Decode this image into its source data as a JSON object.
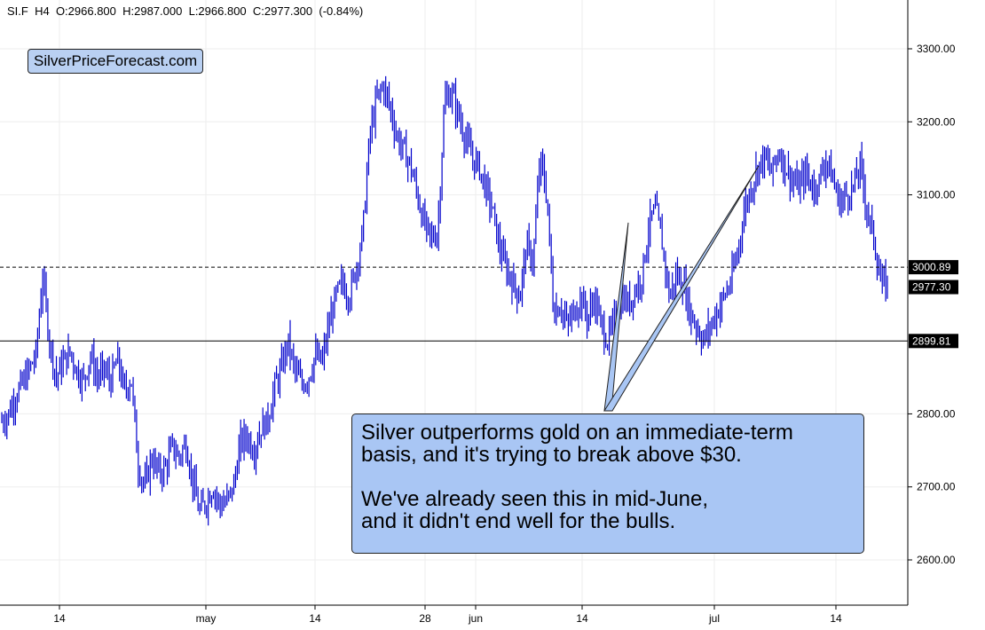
{
  "header": {
    "symbol": "SI.F",
    "timeframe": "H4",
    "open": "O:2966.800",
    "high": "H:2987.000",
    "low": "L:2966.800",
    "close": "C:2977.300",
    "change": "(-0.84%)"
  },
  "brand": {
    "label": "SilverPriceForecast.com"
  },
  "callout": {
    "line1": "Silver outperforms gold on an immediate-term",
    "line2": "basis, and it's trying to break above $30.",
    "line3": "We've already seen this in mid-June,",
    "line4": "and it didn't end well for the bulls."
  },
  "colors": {
    "price": "#0000cc",
    "callout_bg": "#a9c6f4",
    "brand_bg": "#b9d0f2"
  },
  "chart_data": {
    "type": "line",
    "series": [
      {
        "values": [
          2790,
          2800,
          2825,
          2840,
          2860,
          2880,
          2990,
          2900,
          2850,
          2870,
          2885,
          2860,
          2845,
          2880,
          2850,
          2860,
          2845,
          2875,
          2830,
          2850,
          2730,
          2700,
          2740,
          2720,
          2725,
          2755,
          2740,
          2760,
          2710,
          2665,
          2680,
          2700,
          2675,
          2680,
          2700,
          2760,
          2770,
          2750,
          2780,
          2790,
          2835,
          2860,
          2900,
          2860,
          2840,
          2850,
          2880,
          2870,
          2920,
          2960,
          2980,
          2960,
          3000,
          3050,
          3180,
          3230,
          3250,
          3220,
          3180,
          3160,
          3140,
          3100,
          3060,
          3040,
          3050,
          3230,
          3240,
          3210,
          3180,
          3150,
          3140,
          3110,
          3080,
          3030,
          3000,
          2980,
          2960,
          3030,
          3010,
          3150,
          3100,
          2940,
          2950,
          2920,
          2940,
          2960,
          2930,
          2960,
          2920,
          2900,
          2930,
          2960,
          2950,
          2970,
          2990,
          3060,
          3080,
          3030,
          2960,
          2990,
          2980,
          2940,
          2920,
          2900,
          2920,
          2940,
          2960,
          2980,
          3020,
          3080,
          3110,
          3140,
          3150,
          3130,
          3160,
          3140,
          3120,
          3110,
          3130,
          3110,
          3120,
          3150,
          3120,
          3090,
          3100,
          3110,
          3140,
          3080,
          3040,
          2980,
          2975
        ]
      }
    ],
    "levels": [
      {
        "value": 3000.89,
        "style": "dashed",
        "label": "3000.89"
      },
      {
        "value": 2899.81,
        "style": "solid",
        "label": "2899.81"
      }
    ],
    "last_price": {
      "value": 2977.3,
      "label": "2977.30"
    },
    "y_ticks": [
      {
        "value": 3300,
        "label": "3300.00"
      },
      {
        "value": 3200,
        "label": "3200.00"
      },
      {
        "value": 3100,
        "label": "3100.00"
      },
      {
        "value": 2800,
        "label": "2800.00"
      },
      {
        "value": 2700,
        "label": "2700.00"
      },
      {
        "value": 2600,
        "label": "2600.00"
      }
    ],
    "x_ticks": [
      "14",
      "may",
      "14",
      "28",
      "jun",
      "14",
      "jul",
      "14"
    ],
    "ylim": [
      2540,
      3380
    ],
    "grid": true,
    "title": "",
    "xlabel": "",
    "ylabel": ""
  }
}
